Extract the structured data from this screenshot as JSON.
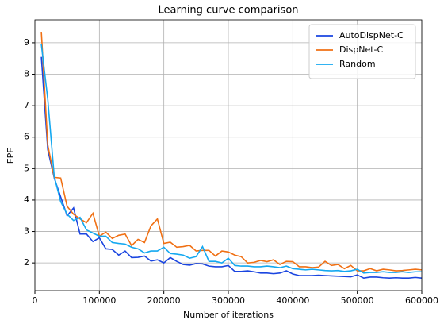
{
  "chart_data": {
    "type": "line",
    "title": "Learning curve comparison",
    "xlabel": "Number of iterations",
    "ylabel": "EPE",
    "x": [
      10000,
      20000,
      30000,
      40000,
      50000,
      60000,
      70000,
      80000,
      90000,
      100000,
      110000,
      120000,
      130000,
      140000,
      150000,
      160000,
      170000,
      180000,
      190000,
      200000,
      210000,
      220000,
      230000,
      240000,
      250000,
      260000,
      270000,
      280000,
      290000,
      300000,
      310000,
      320000,
      330000,
      340000,
      350000,
      360000,
      370000,
      380000,
      390000,
      400000,
      410000,
      420000,
      430000,
      440000,
      450000,
      460000,
      470000,
      480000,
      490000,
      500000,
      510000,
      520000,
      530000,
      540000,
      550000,
      560000,
      570000,
      580000,
      590000,
      600000
    ],
    "series": [
      {
        "name": "AutoDispNet-C",
        "color": "#1a45e0",
        "values": [
          8.55,
          5.6,
          4.7,
          4.1,
          3.5,
          3.75,
          2.92,
          2.92,
          2.68,
          2.8,
          2.45,
          2.43,
          2.25,
          2.38,
          2.17,
          2.18,
          2.22,
          2.06,
          2.1,
          2.0,
          2.17,
          2.05,
          1.95,
          1.93,
          1.98,
          1.97,
          1.9,
          1.88,
          1.88,
          1.92,
          1.73,
          1.73,
          1.75,
          1.72,
          1.68,
          1.68,
          1.66,
          1.68,
          1.75,
          1.65,
          1.6,
          1.6,
          1.6,
          1.61,
          1.6,
          1.59,
          1.58,
          1.57,
          1.56,
          1.62,
          1.52,
          1.55,
          1.55,
          1.53,
          1.52,
          1.53,
          1.52,
          1.52,
          1.54,
          1.52
        ]
      },
      {
        "name": "DispNet-C",
        "color": "#f07014",
        "values": [
          9.35,
          5.75,
          4.72,
          4.7,
          3.8,
          3.55,
          3.4,
          3.28,
          3.58,
          2.85,
          2.98,
          2.78,
          2.88,
          2.92,
          2.55,
          2.75,
          2.65,
          3.18,
          3.4,
          2.62,
          2.66,
          2.5,
          2.52,
          2.56,
          2.38,
          2.4,
          2.4,
          2.22,
          2.38,
          2.35,
          2.25,
          2.2,
          2.0,
          2.02,
          2.08,
          2.04,
          2.1,
          1.95,
          2.05,
          2.04,
          1.88,
          1.88,
          1.85,
          1.87,
          2.05,
          1.92,
          1.95,
          1.82,
          1.92,
          1.75,
          1.75,
          1.82,
          1.75,
          1.8,
          1.78,
          1.75,
          1.76,
          1.78,
          1.8,
          1.78
        ]
      },
      {
        "name": "Random",
        "color": "#14a8f0",
        "values": [
          8.95,
          7.2,
          4.75,
          3.95,
          3.55,
          3.35,
          3.45,
          3.05,
          2.95,
          2.85,
          2.85,
          2.65,
          2.62,
          2.6,
          2.5,
          2.45,
          2.32,
          2.38,
          2.38,
          2.5,
          2.3,
          2.28,
          2.25,
          2.15,
          2.2,
          2.52,
          2.05,
          2.05,
          2.0,
          2.15,
          1.92,
          1.9,
          1.9,
          1.88,
          1.88,
          1.9,
          1.88,
          1.85,
          1.9,
          1.82,
          1.8,
          1.78,
          1.8,
          1.78,
          1.76,
          1.75,
          1.76,
          1.73,
          1.75,
          1.8,
          1.68,
          1.7,
          1.7,
          1.72,
          1.7,
          1.7,
          1.72,
          1.7,
          1.72,
          1.72
        ]
      }
    ],
    "xlim": [
      0,
      600000
    ],
    "xticks": [
      0,
      100000,
      200000,
      300000,
      400000,
      500000,
      600000
    ],
    "ylim": [
      1.12,
      9.73
    ],
    "yticks": [
      2,
      3,
      4,
      5,
      6,
      7,
      8,
      9
    ],
    "grid": true,
    "legend": "upper right"
  }
}
